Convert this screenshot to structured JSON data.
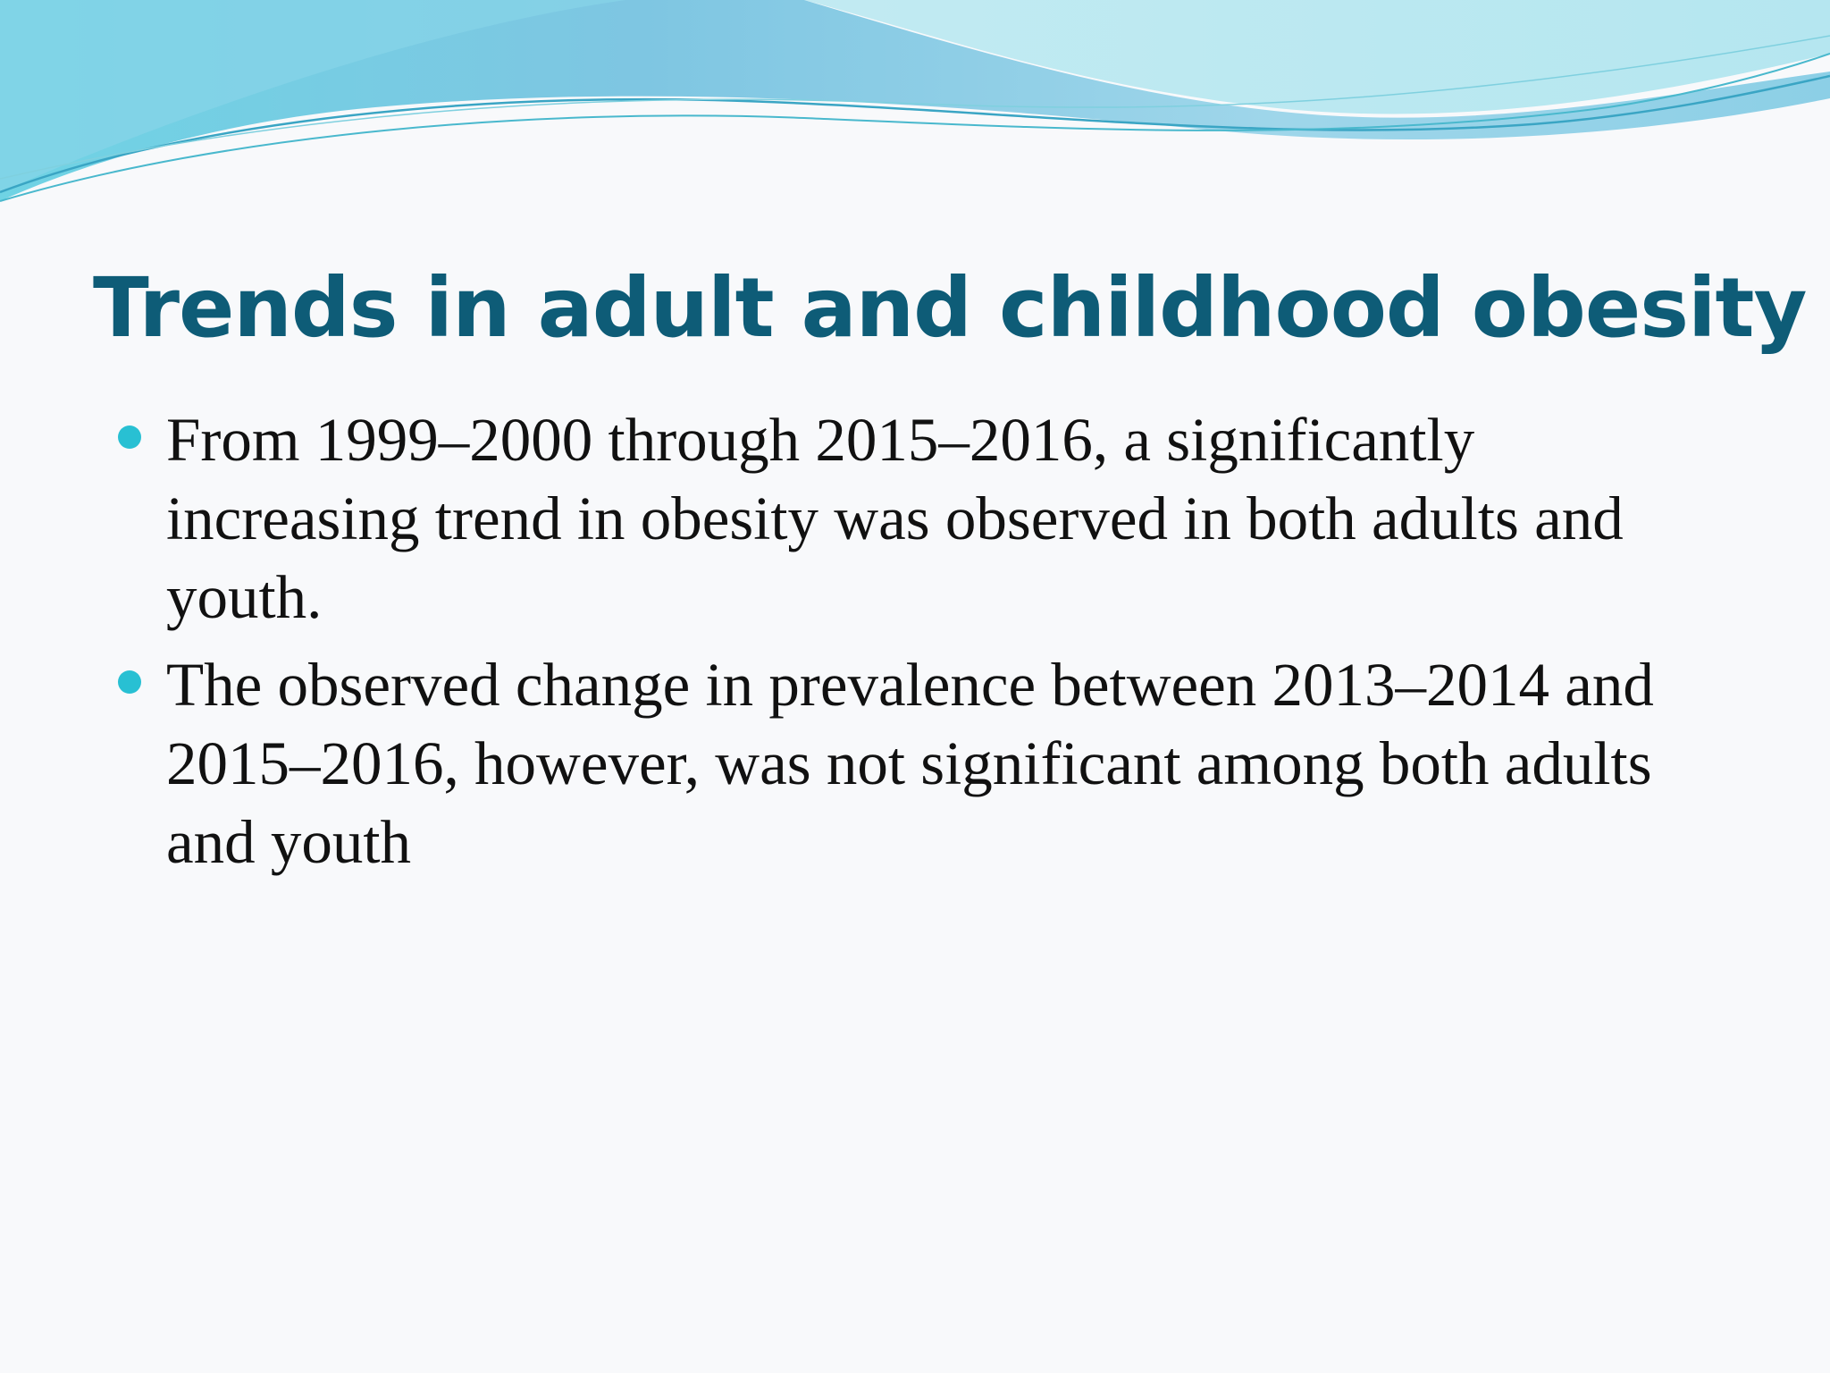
{
  "slide": {
    "title": "Trends in adult and childhood obesity",
    "bullets": [
      "From 1999–2000 through 2015–2016, a significantly increasing trend in obesity was observed in both adults and youth.",
      "The observed change in prevalence between 2013–2014 and 2015–2016, however, was not significant among both adults and youth"
    ]
  },
  "colors": {
    "title": "#0e5c77",
    "bullet": "#28c0d3",
    "body_text": "#111111",
    "background": "#f8f9fb",
    "wave_dark": "#5ec6df",
    "wave_light": "#b8e6ef"
  }
}
